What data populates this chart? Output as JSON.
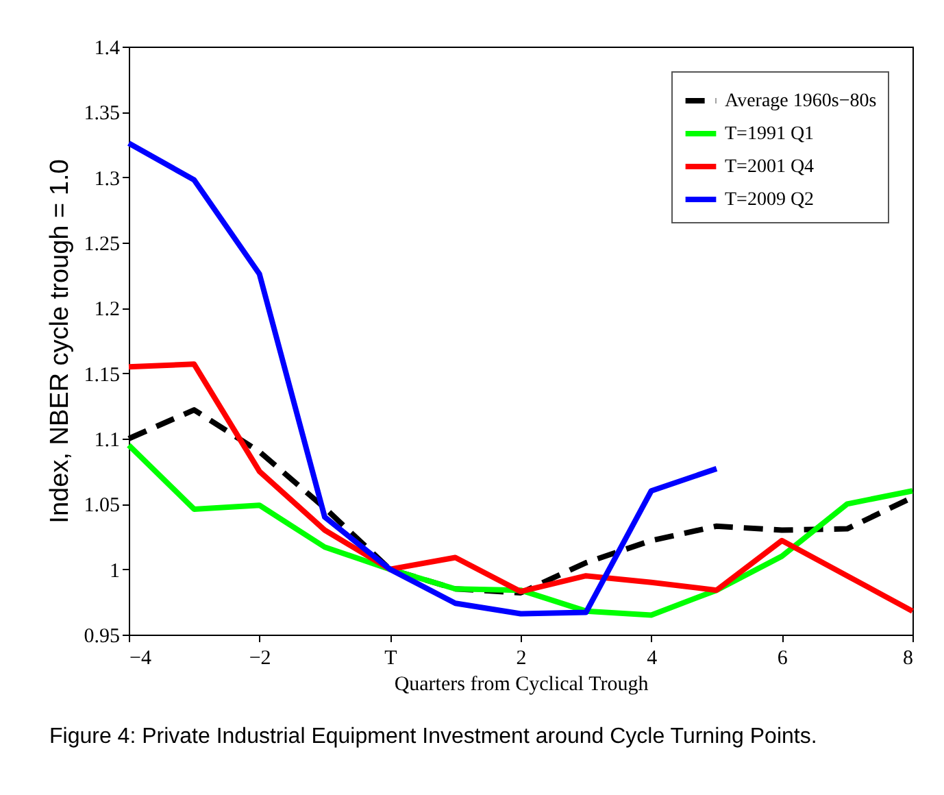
{
  "chart_data": {
    "type": "line",
    "xlabel": "Quarters from Cyclical Trough",
    "ylabel": "Index, NBER cycle trough = 1.0",
    "x": [
      -4,
      -3,
      -2,
      -1,
      0,
      1,
      2,
      3,
      4,
      5,
      6,
      7,
      8
    ],
    "series": [
      {
        "name": "Average 1960s−80s",
        "color": "#000000",
        "line_style": "dashed",
        "values": [
          1.1,
          1.122,
          1.09,
          1.047,
          1.0,
          0.985,
          0.982,
          1.005,
          1.022,
          1.033,
          1.03,
          1.031,
          1.055
        ]
      },
      {
        "name": "T=1991 Q1",
        "color": "#00ff00",
        "values": [
          1.095,
          1.046,
          1.049,
          1.017,
          1.0,
          0.985,
          0.984,
          0.968,
          0.965,
          0.984,
          1.01,
          1.05,
          1.06
        ]
      },
      {
        "name": "T=2001 Q4",
        "color": "#ff0000",
        "values": [
          1.155,
          1.157,
          1.075,
          1.03,
          1.0,
          1.009,
          0.983,
          0.995,
          0.99,
          0.984,
          1.022,
          0.995,
          0.968
        ]
      },
      {
        "name": "T=2009 Q2",
        "color": "#0000ff",
        "values": [
          1.326,
          1.298,
          1.226,
          1.04,
          1.0,
          0.974,
          0.966,
          0.967,
          1.06,
          1.077,
          null,
          null,
          null
        ]
      }
    ],
    "xlim": [
      -4,
      8
    ],
    "xticks": [
      {
        "value": -4,
        "label": "−4"
      },
      {
        "value": -2,
        "label": "−2"
      },
      {
        "value": 0,
        "label": "T"
      },
      2,
      4,
      6,
      8
    ],
    "ylim": [
      0.95,
      1.4
    ],
    "yticks": [
      0.95,
      1,
      1.05,
      1.1,
      1.15,
      1.2,
      1.25,
      1.3,
      1.35,
      1.4
    ],
    "legend": "top right",
    "line_style": "solid",
    "annotations": [
      "Figure 4: Private Industrial Equipment Investment around Cycle Turning Points."
    ]
  }
}
